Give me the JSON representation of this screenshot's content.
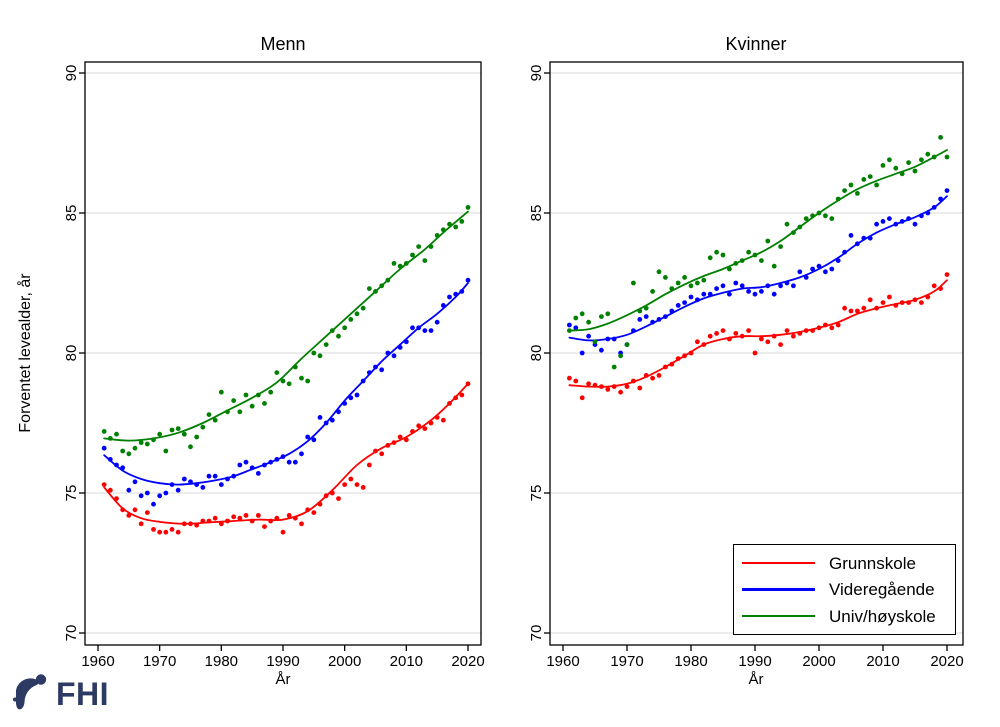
{
  "colors": {
    "grunnskole": "#ff0000",
    "videregaende": "#0000ff",
    "univ_hoyskole": "#008000",
    "gridline": "#e0e0e0",
    "frame": "#000000",
    "logo": "#2d3a64",
    "background": "#ffffff"
  },
  "logo": {
    "text": "FHI",
    "mark": "fhi-person-mark"
  },
  "legend": {
    "position": "bottom-right-of-kvinner-panel",
    "entries": [
      {
        "label": "Grunnskole",
        "color": "#ff0000"
      },
      {
        "label": "Videregående",
        "color": "#0000ff"
      },
      {
        "label": "Univ/høyskole",
        "color": "#008000"
      }
    ]
  },
  "chart_data": [
    {
      "type": "scatter",
      "title": "Menn",
      "xlabel": "År",
      "ylabel": "Forventet levealder, år",
      "xlim": [
        1958,
        2022
      ],
      "ylim": [
        69.6,
        90.4
      ],
      "xticks": [
        1960,
        1970,
        1980,
        1990,
        2000,
        2010,
        2020
      ],
      "yticks": [
        70,
        75,
        80,
        85,
        90
      ],
      "grid": "horizontal",
      "year_start": 1961,
      "year_end": 2020,
      "show_legend": false,
      "series": [
        {
          "name": "Grunnskole",
          "color": "#ff0000",
          "dots": [
            75.3,
            75.1,
            74.8,
            74.4,
            74.2,
            74.4,
            73.9,
            74.3,
            73.7,
            73.6,
            73.6,
            73.7,
            73.6,
            73.9,
            73.9,
            73.85,
            74.0,
            74.0,
            74.1,
            73.9,
            74.0,
            74.15,
            74.1,
            74.2,
            74.0,
            74.2,
            73.8,
            74.0,
            74.1,
            73.6,
            74.2,
            74.1,
            73.9,
            74.4,
            74.3,
            74.6,
            74.9,
            75.0,
            74.8,
            75.3,
            75.5,
            75.3,
            75.2,
            76.0,
            76.5,
            76.4,
            76.7,
            76.8,
            77.0,
            76.9,
            77.2,
            77.4,
            77.3,
            77.5,
            77.7,
            77.6,
            78.2,
            78.4,
            78.5,
            78.9
          ],
          "trend": [
            [
              1961,
              75.2
            ],
            [
              1964,
              74.45
            ],
            [
              1967,
              74.1
            ],
            [
              1970,
              73.97
            ],
            [
              1974,
              73.9
            ],
            [
              1978,
              73.95
            ],
            [
              1982,
              74.0
            ],
            [
              1986,
              74.05
            ],
            [
              1990,
              74.05
            ],
            [
              1994,
              74.35
            ],
            [
              1998,
              75.1
            ],
            [
              2002,
              76.0
            ],
            [
              2006,
              76.6
            ],
            [
              2010,
              77.0
            ],
            [
              2014,
              77.6
            ],
            [
              2017,
              78.2
            ],
            [
              2020,
              78.9
            ]
          ]
        },
        {
          "name": "Videregående",
          "color": "#0000ff",
          "dots": [
            76.6,
            76.2,
            76.0,
            75.9,
            75.1,
            75.4,
            74.9,
            75.0,
            74.6,
            74.9,
            75.0,
            75.3,
            75.1,
            75.5,
            75.4,
            75.3,
            75.2,
            75.6,
            75.6,
            75.3,
            75.5,
            75.6,
            76.0,
            76.1,
            75.9,
            75.7,
            76.0,
            76.1,
            76.2,
            76.3,
            76.1,
            76.1,
            76.4,
            77.0,
            76.9,
            77.7,
            77.5,
            77.6,
            77.9,
            78.2,
            78.4,
            78.5,
            79.0,
            79.3,
            79.5,
            79.4,
            80.0,
            79.9,
            80.2,
            80.4,
            80.9,
            80.9,
            80.8,
            80.8,
            81.1,
            81.7,
            82.0,
            82.1,
            82.2,
            82.6
          ],
          "trend": [
            [
              1961,
              76.35
            ],
            [
              1964,
              75.8
            ],
            [
              1967,
              75.5
            ],
            [
              1970,
              75.35
            ],
            [
              1973,
              75.3
            ],
            [
              1976,
              75.35
            ],
            [
              1979,
              75.45
            ],
            [
              1982,
              75.6
            ],
            [
              1985,
              75.85
            ],
            [
              1988,
              76.1
            ],
            [
              1991,
              76.4
            ],
            [
              1994,
              76.85
            ],
            [
              1997,
              77.5
            ],
            [
              2000,
              78.3
            ],
            [
              2003,
              79.0
            ],
            [
              2006,
              79.7
            ],
            [
              2009,
              80.3
            ],
            [
              2012,
              80.9
            ],
            [
              2015,
              81.4
            ],
            [
              2018,
              82.0
            ],
            [
              2020,
              82.5
            ]
          ]
        },
        {
          "name": "Univ/høyskole",
          "color": "#008000",
          "dots": [
            77.2,
            76.95,
            77.1,
            76.5,
            76.4,
            76.6,
            76.8,
            76.75,
            76.9,
            77.1,
            76.5,
            77.25,
            77.3,
            77.1,
            76.65,
            77.0,
            77.35,
            77.8,
            77.6,
            78.6,
            77.9,
            78.3,
            77.9,
            78.5,
            78.1,
            78.5,
            78.2,
            78.6,
            79.3,
            79.0,
            78.9,
            79.5,
            79.1,
            79.0,
            80.0,
            79.9,
            80.3,
            80.8,
            80.6,
            80.9,
            81.2,
            81.4,
            81.6,
            82.3,
            82.2,
            82.4,
            82.6,
            83.2,
            83.1,
            83.2,
            83.5,
            83.8,
            83.3,
            83.8,
            84.2,
            84.4,
            84.6,
            84.5,
            84.7,
            85.2
          ],
          "trend": [
            [
              1961,
              76.95
            ],
            [
              1965,
              76.87
            ],
            [
              1969,
              76.95
            ],
            [
              1973,
              77.15
            ],
            [
              1977,
              77.5
            ],
            [
              1981,
              77.95
            ],
            [
              1985,
              78.4
            ],
            [
              1989,
              78.95
            ],
            [
              1993,
              79.8
            ],
            [
              1997,
              80.6
            ],
            [
              2001,
              81.4
            ],
            [
              2005,
              82.2
            ],
            [
              2009,
              83.0
            ],
            [
              2013,
              83.7
            ],
            [
              2016,
              84.3
            ],
            [
              2020,
              85.05
            ]
          ]
        }
      ]
    },
    {
      "type": "scatter",
      "title": "Kvinner",
      "xlabel": "År",
      "ylabel": "",
      "xlim": [
        1958,
        2022
      ],
      "ylim": [
        69.6,
        90.4
      ],
      "xticks": [
        1960,
        1970,
        1980,
        1990,
        2000,
        2010,
        2020
      ],
      "yticks": [
        70,
        75,
        80,
        85,
        90
      ],
      "grid": "horizontal",
      "year_start": 1961,
      "year_end": 2020,
      "show_legend": true,
      "series": [
        {
          "name": "Grunnskole",
          "color": "#ff0000",
          "dots": [
            79.1,
            79.0,
            78.4,
            78.9,
            78.85,
            78.8,
            78.7,
            78.8,
            78.6,
            78.8,
            79.0,
            78.75,
            79.2,
            79.1,
            79.2,
            79.5,
            79.6,
            79.8,
            79.9,
            80.0,
            80.4,
            80.3,
            80.6,
            80.7,
            80.8,
            80.5,
            80.7,
            80.6,
            80.8,
            80.0,
            80.5,
            80.4,
            80.6,
            80.3,
            80.8,
            80.6,
            80.7,
            80.8,
            80.8,
            80.9,
            81.0,
            80.9,
            81.0,
            81.6,
            81.5,
            81.5,
            81.6,
            81.9,
            81.6,
            81.8,
            82.0,
            81.7,
            81.8,
            81.8,
            81.9,
            81.8,
            82.0,
            82.4,
            82.3,
            82.8
          ],
          "trend": [
            [
              1961,
              78.85
            ],
            [
              1964,
              78.8
            ],
            [
              1967,
              78.8
            ],
            [
              1970,
              78.9
            ],
            [
              1973,
              79.15
            ],
            [
              1976,
              79.5
            ],
            [
              1979,
              79.9
            ],
            [
              1982,
              80.3
            ],
            [
              1985,
              80.5
            ],
            [
              1988,
              80.6
            ],
            [
              1991,
              80.6
            ],
            [
              1994,
              80.65
            ],
            [
              1997,
              80.75
            ],
            [
              2000,
              80.9
            ],
            [
              2003,
              81.1
            ],
            [
              2006,
              81.4
            ],
            [
              2009,
              81.6
            ],
            [
              2012,
              81.75
            ],
            [
              2015,
              81.9
            ],
            [
              2018,
              82.2
            ],
            [
              2020,
              82.6
            ]
          ]
        },
        {
          "name": "Videregående",
          "color": "#0000ff",
          "dots": [
            81.0,
            80.9,
            80.0,
            80.6,
            80.3,
            80.1,
            80.5,
            80.5,
            80.0,
            80.3,
            80.8,
            81.2,
            81.3,
            81.1,
            81.2,
            81.3,
            81.5,
            81.7,
            81.8,
            82.0,
            81.9,
            82.1,
            82.1,
            82.3,
            82.4,
            82.1,
            82.5,
            82.4,
            82.2,
            82.1,
            82.2,
            82.4,
            82.1,
            82.4,
            82.5,
            82.4,
            82.9,
            82.7,
            83.0,
            83.1,
            82.9,
            83.0,
            83.3,
            83.6,
            84.2,
            83.9,
            84.1,
            84.1,
            84.6,
            84.7,
            84.8,
            84.6,
            84.7,
            84.8,
            84.6,
            84.9,
            85.0,
            85.2,
            85.5,
            85.8
          ],
          "trend": [
            [
              1961,
              80.55
            ],
            [
              1964,
              80.45
            ],
            [
              1967,
              80.5
            ],
            [
              1970,
              80.65
            ],
            [
              1973,
              80.95
            ],
            [
              1976,
              81.3
            ],
            [
              1979,
              81.65
            ],
            [
              1982,
              81.95
            ],
            [
              1985,
              82.15
            ],
            [
              1988,
              82.3
            ],
            [
              1991,
              82.35
            ],
            [
              1994,
              82.5
            ],
            [
              1997,
              82.7
            ],
            [
              2000,
              83.0
            ],
            [
              2003,
              83.4
            ],
            [
              2006,
              83.9
            ],
            [
              2009,
              84.3
            ],
            [
              2012,
              84.6
            ],
            [
              2015,
              84.85
            ],
            [
              2018,
              85.2
            ],
            [
              2020,
              85.6
            ]
          ]
        },
        {
          "name": "Univ/høyskole",
          "color": "#008000",
          "dots": [
            80.8,
            81.25,
            81.4,
            81.1,
            80.4,
            81.3,
            81.4,
            79.5,
            79.9,
            80.3,
            82.5,
            81.5,
            81.6,
            82.2,
            82.9,
            82.7,
            82.3,
            82.5,
            82.7,
            82.4,
            82.5,
            82.6,
            83.4,
            83.6,
            83.5,
            83.0,
            83.2,
            83.3,
            83.6,
            83.5,
            83.3,
            84.0,
            83.1,
            83.8,
            84.6,
            84.3,
            84.5,
            84.8,
            84.9,
            85.0,
            84.9,
            84.8,
            85.5,
            85.8,
            86.0,
            85.7,
            86.2,
            86.3,
            86.0,
            86.7,
            86.9,
            86.6,
            86.4,
            86.8,
            86.5,
            86.9,
            87.1,
            87.0,
            87.7,
            87.0
          ],
          "trend": [
            [
              1961,
              80.8
            ],
            [
              1964,
              80.85
            ],
            [
              1967,
              81.05
            ],
            [
              1970,
              81.35
            ],
            [
              1973,
              81.7
            ],
            [
              1976,
              82.1
            ],
            [
              1979,
              82.45
            ],
            [
              1982,
              82.75
            ],
            [
              1985,
              83.0
            ],
            [
              1988,
              83.3
            ],
            [
              1991,
              83.6
            ],
            [
              1994,
              84.0
            ],
            [
              1997,
              84.5
            ],
            [
              2000,
              85.0
            ],
            [
              2003,
              85.45
            ],
            [
              2006,
              85.85
            ],
            [
              2009,
              86.15
            ],
            [
              2012,
              86.4
            ],
            [
              2015,
              86.65
            ],
            [
              2018,
              87.0
            ],
            [
              2020,
              87.25
            ]
          ]
        }
      ]
    }
  ]
}
